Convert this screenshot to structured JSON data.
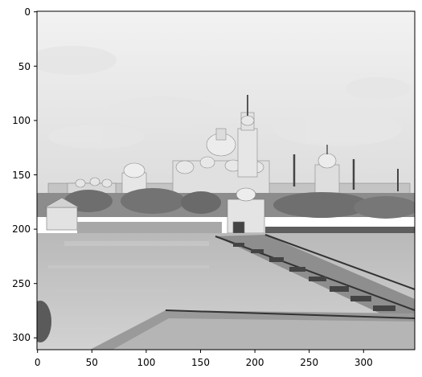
{
  "image": {
    "description_icon": "grayscale-photo",
    "content": "monastery-on-lake-with-pontoon-bridge"
  },
  "axes": {
    "x_ticks": [
      "0",
      "50",
      "100",
      "150",
      "200",
      "250",
      "300"
    ],
    "y_ticks": [
      "0",
      "50",
      "100",
      "150",
      "200",
      "250",
      "300"
    ],
    "xlim": [
      0,
      348
    ],
    "ylim": [
      0,
      313
    ]
  },
  "colors": {
    "frame": "#000000",
    "background": "#ffffff"
  }
}
